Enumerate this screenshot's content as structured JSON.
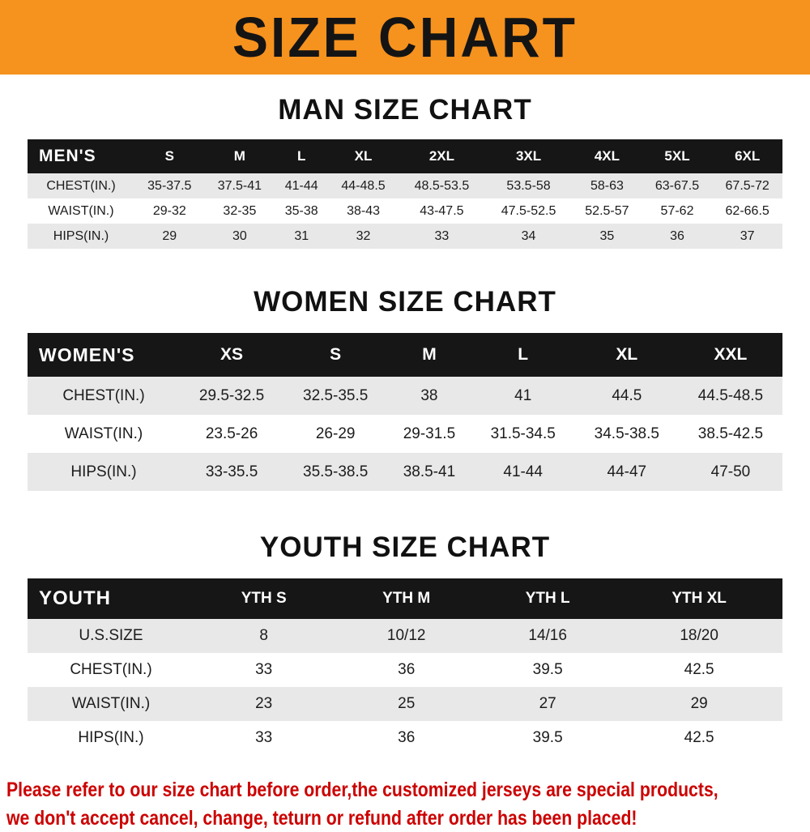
{
  "banner": {
    "title": "SIZE CHART"
  },
  "colors": {
    "banner_bg": "#f6921e",
    "header_bg": "#161616",
    "row_alt": "#e8e8e8",
    "notice": "#cc0000"
  },
  "chart_data": [
    {
      "type": "table",
      "title": "MAN SIZE CHART",
      "header": [
        "MEN'S",
        "S",
        "M",
        "L",
        "XL",
        "2XL",
        "3XL",
        "4XL",
        "5XL",
        "6XL"
      ],
      "rows": [
        [
          "CHEST(IN.)",
          "35-37.5",
          "37.5-41",
          "41-44",
          "44-48.5",
          "48.5-53.5",
          "53.5-58",
          "58-63",
          "63-67.5",
          "67.5-72"
        ],
        [
          "WAIST(IN.)",
          "29-32",
          "32-35",
          "35-38",
          "38-43",
          "43-47.5",
          "47.5-52.5",
          "52.5-57",
          "57-62",
          "62-66.5"
        ],
        [
          "HIPS(IN.)",
          "29",
          "30",
          "31",
          "32",
          "33",
          "34",
          "35",
          "36",
          "37"
        ]
      ]
    },
    {
      "type": "table",
      "title": "WOMEN SIZE CHART",
      "header": [
        "WOMEN'S",
        "XS",
        "S",
        "M",
        "L",
        "XL",
        "XXL"
      ],
      "rows": [
        [
          "CHEST(IN.)",
          "29.5-32.5",
          "32.5-35.5",
          "38",
          "41",
          "44.5",
          "44.5-48.5"
        ],
        [
          "WAIST(IN.)",
          "23.5-26",
          "26-29",
          "29-31.5",
          "31.5-34.5",
          "34.5-38.5",
          "38.5-42.5"
        ],
        [
          "HIPS(IN.)",
          "33-35.5",
          "35.5-38.5",
          "38.5-41",
          "41-44",
          "44-47",
          "47-50"
        ]
      ]
    },
    {
      "type": "table",
      "title": "YOUTH SIZE CHART",
      "header": [
        "YOUTH",
        "YTH S",
        "YTH M",
        "YTH L",
        "YTH XL"
      ],
      "rows": [
        [
          "U.S.SIZE",
          "8",
          "10/12",
          "14/16",
          "18/20"
        ],
        [
          "CHEST(IN.)",
          "33",
          "36",
          "39.5",
          "42.5"
        ],
        [
          "WAIST(IN.)",
          "23",
          "25",
          "27",
          "29"
        ],
        [
          "HIPS(IN.)",
          "33",
          "36",
          "39.5",
          "42.5"
        ]
      ]
    }
  ],
  "footer": {
    "line1": "Please refer to our size chart before order,the customized jerseys are special products,",
    "line2": "we don't accept cancel, change, teturn or refund after order has been placed!"
  }
}
